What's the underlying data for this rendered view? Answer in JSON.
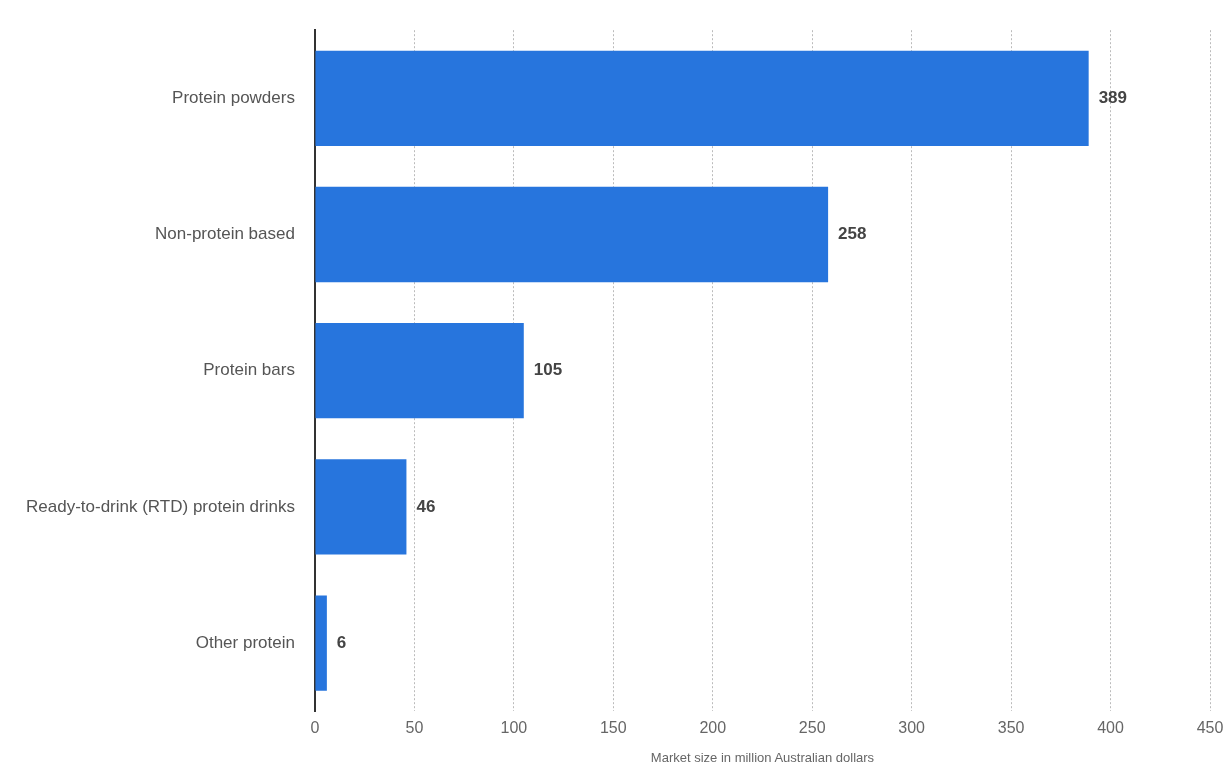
{
  "chart_data": {
    "type": "bar",
    "orientation": "horizontal",
    "xlabel": "Market size in million Australian dollars",
    "categories": [
      "Protein powders",
      "Non-protein based",
      "Protein bars",
      "Ready-to-drink (RTD) protein drinks",
      "Other protein"
    ],
    "values": [
      389,
      258,
      105,
      46,
      6
    ],
    "color": "#2775dd",
    "xlim": [
      0,
      450
    ],
    "xticks": [
      0,
      50,
      100,
      150,
      200,
      250,
      300,
      350,
      400,
      450
    ],
    "grid": "x",
    "data_labels": true,
    "legend": false
  }
}
